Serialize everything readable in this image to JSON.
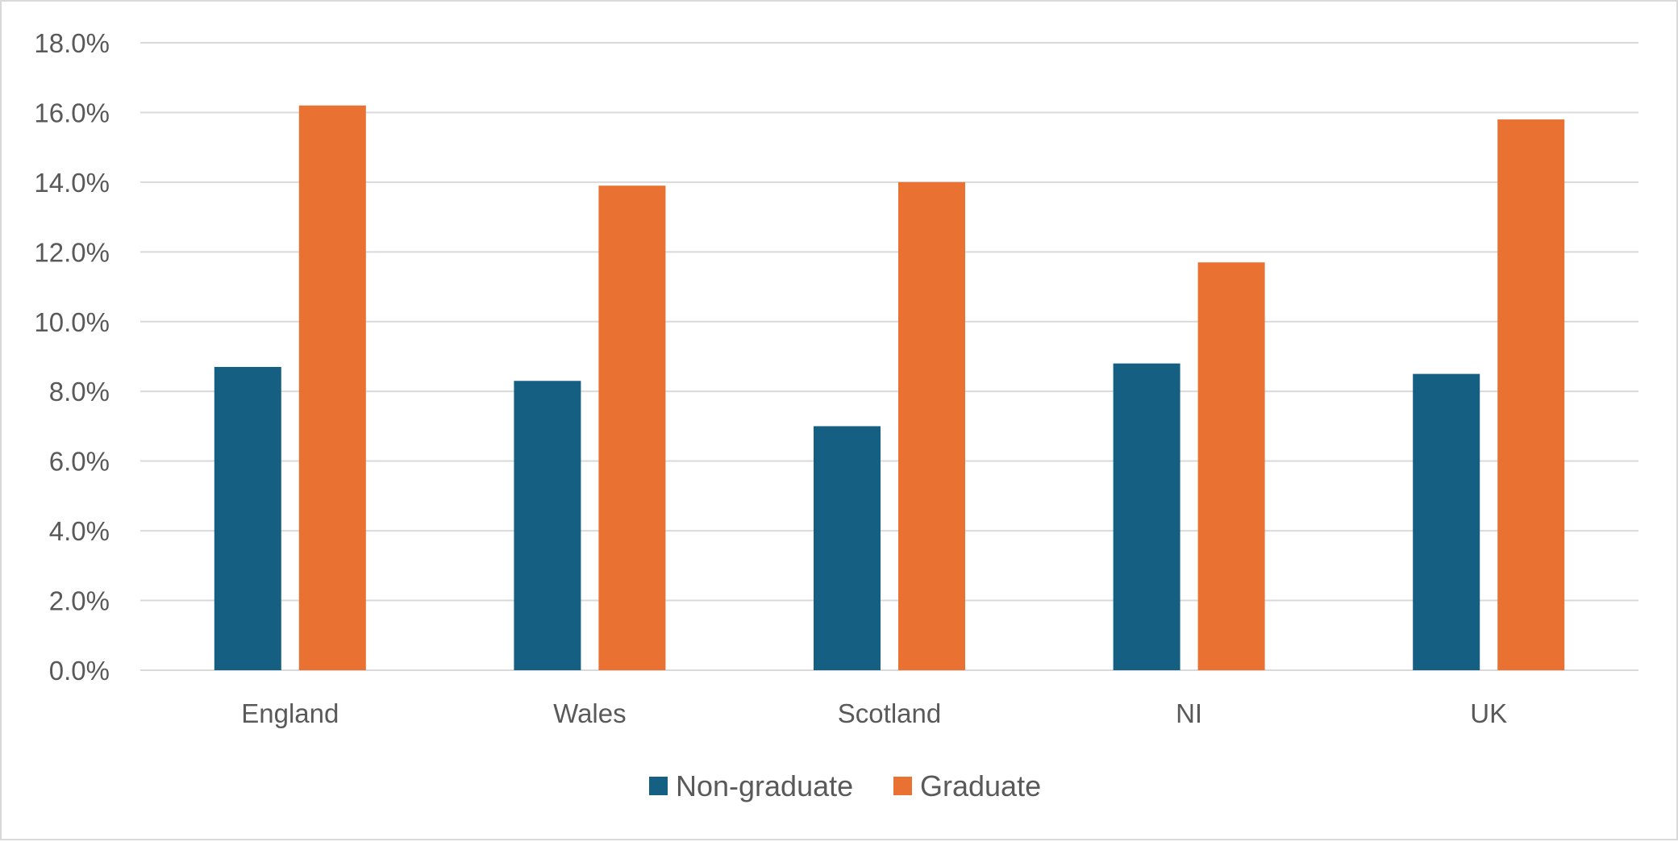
{
  "chart_data": {
    "type": "bar",
    "title": "",
    "xlabel": "",
    "ylabel": "",
    "categories": [
      "England",
      "Wales",
      "Scotland",
      "NI",
      "UK"
    ],
    "series": [
      {
        "name": "Non-graduate",
        "color": "#156082",
        "values": [
          8.7,
          8.3,
          7.0,
          8.8,
          8.5
        ]
      },
      {
        "name": "Graduate",
        "color": "#E97132",
        "values": [
          16.2,
          13.9,
          14.0,
          11.7,
          15.8
        ]
      }
    ],
    "ylim": [
      0,
      18
    ],
    "y_ticks": [
      0,
      2,
      4,
      6,
      8,
      10,
      12,
      14,
      16,
      18
    ],
    "y_tick_labels": [
      "0.0%",
      "2.0%",
      "4.0%",
      "6.0%",
      "8.0%",
      "10.0%",
      "12.0%",
      "14.0%",
      "16.0%",
      "18.0%"
    ],
    "grid": true,
    "legend_position": "bottom"
  }
}
